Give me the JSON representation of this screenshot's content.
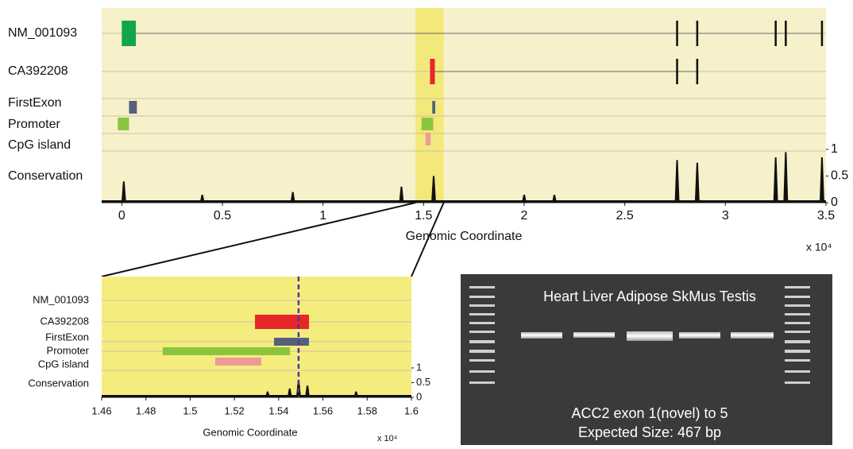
{
  "chart_data": [
    {
      "type": "tracks",
      "background": "#f6f1ca",
      "highlight": [
        1.46,
        1.6
      ],
      "highlight_color": "#f3e87a",
      "xlabel": "Genomic Coordinate",
      "exponent": "x 10⁴",
      "xlim": [
        -0.1,
        3.5
      ],
      "xticks": [
        0,
        0.5,
        1,
        1.5,
        2,
        2.5,
        3,
        3.5
      ],
      "tracks": [
        {
          "name": "NM_001093",
          "features": [
            {
              "start": 0.0,
              "end": 0.07,
              "color": "#12a54a"
            },
            {
              "start": 2.755,
              "end": 2.765,
              "color": "#111111"
            },
            {
              "start": 2.855,
              "end": 2.865,
              "color": "#111111"
            },
            {
              "start": 3.245,
              "end": 3.255,
              "color": "#111111"
            },
            {
              "start": 3.295,
              "end": 3.305,
              "color": "#111111"
            },
            {
              "start": 3.475,
              "end": 3.485,
              "color": "#111111"
            }
          ]
        },
        {
          "name": "CA392208",
          "features": [
            {
              "start": 1.532,
              "end": 1.556,
              "color": "#e8262a"
            },
            {
              "start": 2.755,
              "end": 2.765,
              "color": "#111111"
            },
            {
              "start": 2.855,
              "end": 2.865,
              "color": "#111111"
            }
          ]
        },
        {
          "name": "FirstExon",
          "features": [
            {
              "start": 0.036,
              "end": 0.075,
              "color": "#55607a"
            },
            {
              "start": 1.543,
              "end": 1.558,
              "color": "#55607a"
            }
          ]
        },
        {
          "name": "Promoter",
          "features": [
            {
              "start": -0.02,
              "end": 0.036,
              "color": "#8cc440"
            },
            {
              "start": 1.49,
              "end": 1.548,
              "color": "#8cc440"
            }
          ]
        },
        {
          "name": "CpG island",
          "features": [
            {
              "start": 1.51,
              "end": 1.535,
              "color": "#ee9a9a"
            }
          ]
        }
      ],
      "conservation": {
        "name": "Conservation",
        "x": [
          0.01,
          0.4,
          0.85,
          1.39,
          1.55,
          2.0,
          2.15,
          2.76,
          2.86,
          3.25,
          3.3,
          3.48
        ],
        "values": [
          0.4,
          0.15,
          0.2,
          0.3,
          0.5,
          0.15,
          0.15,
          0.8,
          0.75,
          0.85,
          0.95,
          0.85
        ],
        "color": "#111111"
      },
      "ylim": [
        0,
        1
      ],
      "yticks": [
        0,
        0.5,
        1
      ]
    },
    {
      "type": "tracks",
      "background": "#f5ec7e",
      "marker": 1.549,
      "xlabel": "Genomic Coordinate",
      "exponent": "x 10⁴",
      "xlim": [
        1.46,
        1.6
      ],
      "xticks": [
        1.46,
        1.48,
        1.5,
        1.52,
        1.54,
        1.56,
        1.58,
        1.6
      ],
      "tracks": [
        {
          "name": "NM_001093",
          "features": []
        },
        {
          "name": "CA392208",
          "features": [
            {
              "start": 1.5293,
              "end": 1.5537,
              "color": "#e8262a"
            }
          ]
        },
        {
          "name": "FirstExon",
          "features": [
            {
              "start": 1.5379,
              "end": 1.5537,
              "color": "#55607a"
            }
          ]
        },
        {
          "name": "Promoter",
          "features": [
            {
              "start": 1.4876,
              "end": 1.5451,
              "color": "#8cc440"
            }
          ]
        },
        {
          "name": "CpG island",
          "features": [
            {
              "start": 1.5113,
              "end": 1.5321,
              "color": "#ee9a9a"
            }
          ]
        }
      ],
      "conservation": {
        "name": "Conservation",
        "x": [
          1.535,
          1.545,
          1.549,
          1.553,
          1.575
        ],
        "values": [
          0.2,
          0.3,
          0.6,
          0.4,
          0.2
        ],
        "color": "#111111"
      },
      "ylim": [
        0,
        1
      ],
      "yticks": [
        0,
        0.5,
        1
      ]
    }
  ],
  "gel": {
    "header": "Heart Liver Adipose SkMus Testis",
    "caption": [
      "ACC2 exon 1(novel) to 5",
      "Expected Size: 467 bp"
    ]
  }
}
